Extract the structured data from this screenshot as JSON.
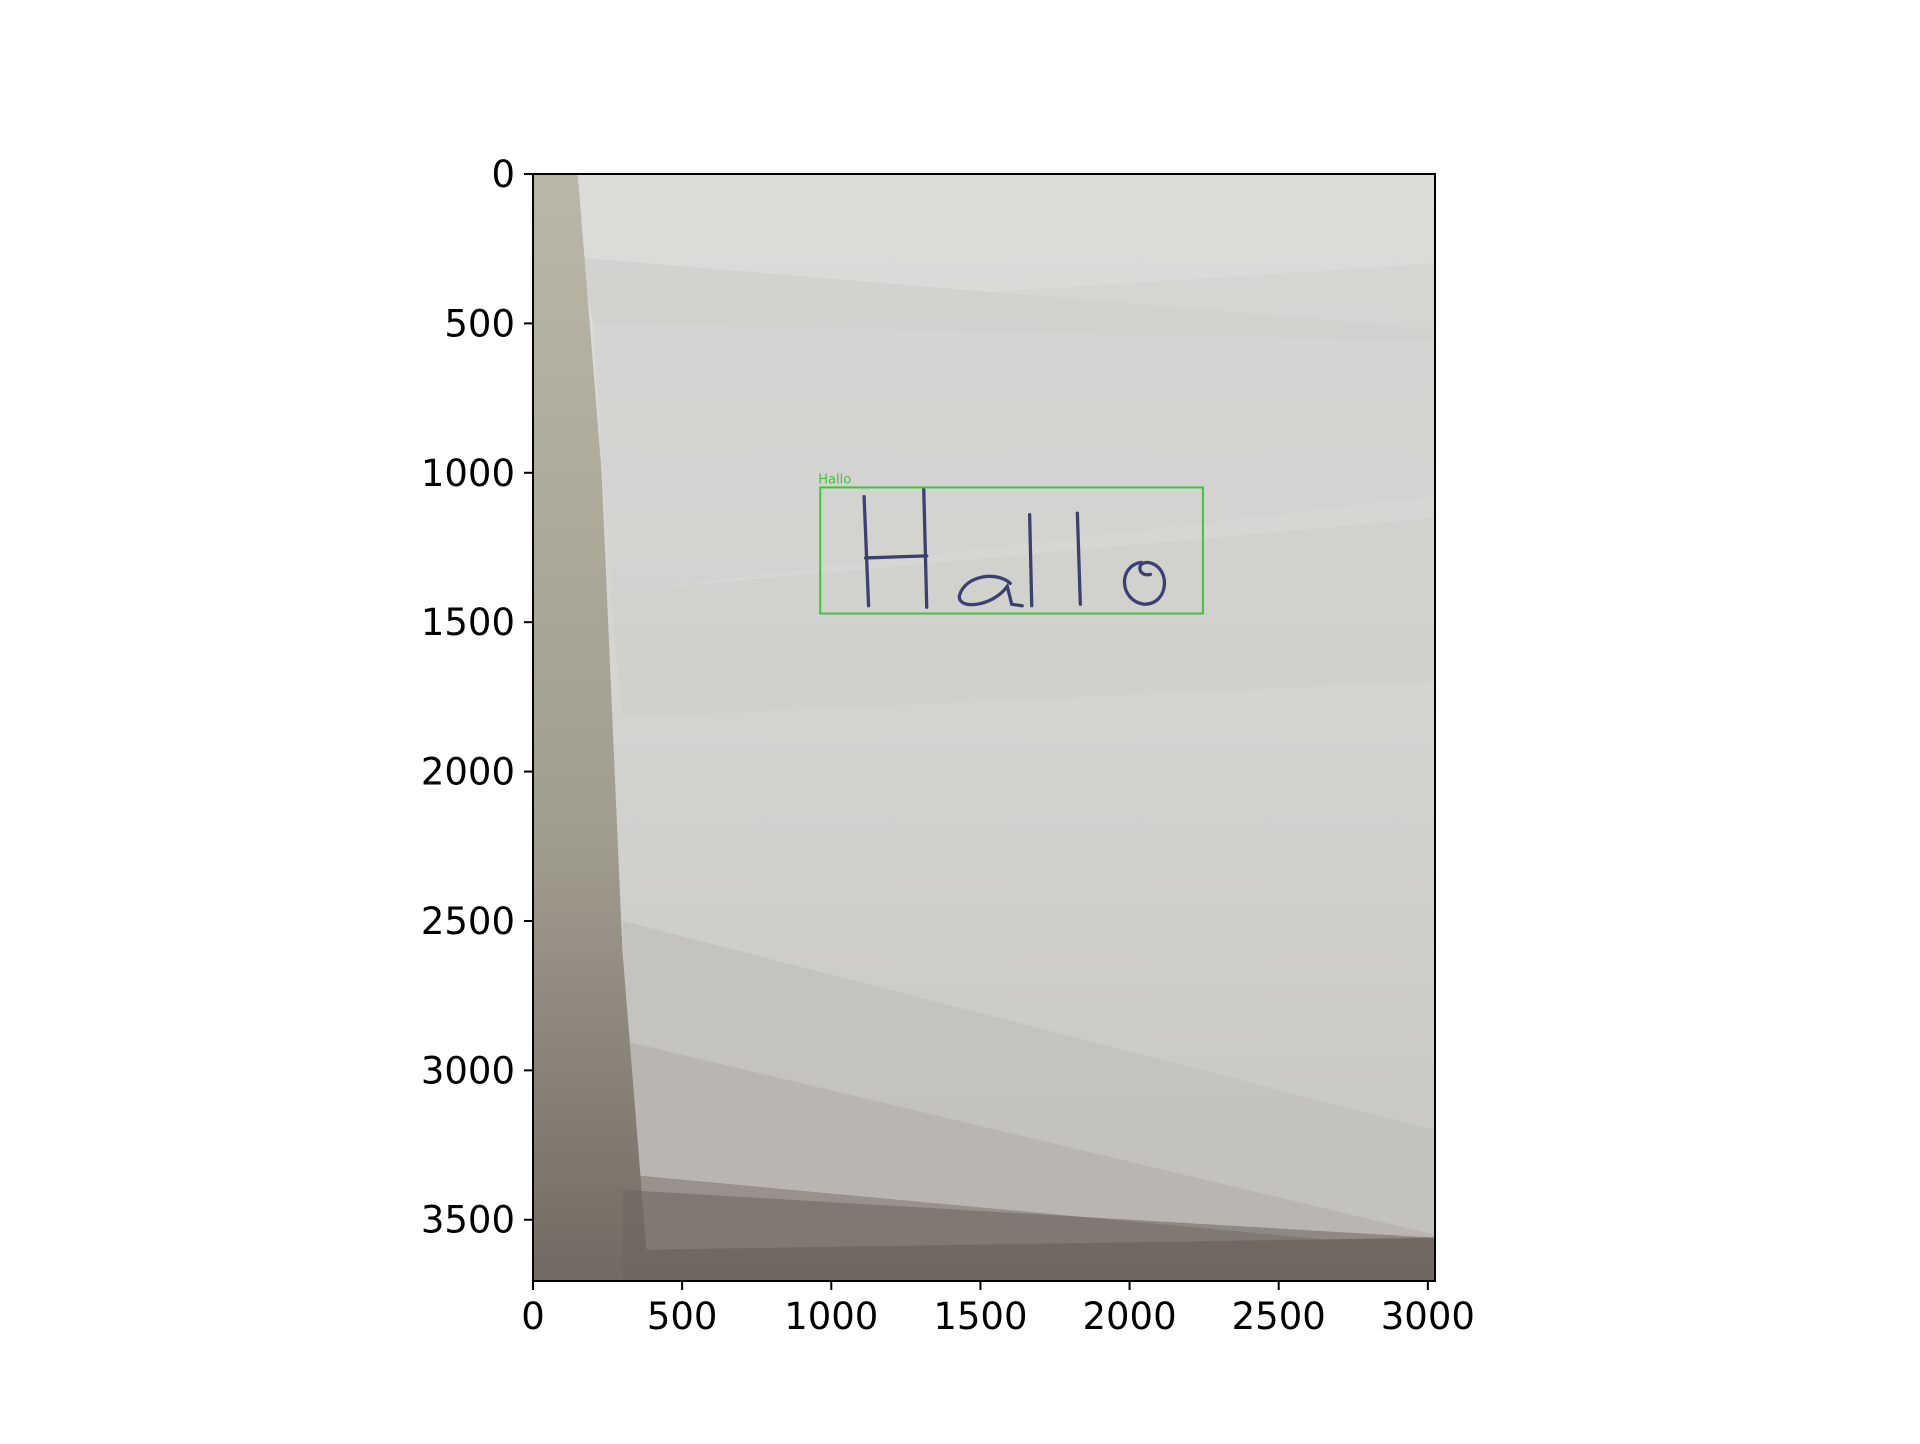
{
  "chart_data": {
    "type": "image",
    "xlim": [
      0,
      3024
    ],
    "ylim": [
      3705,
      0
    ],
    "xticks": [
      0,
      500,
      1000,
      1500,
      2000,
      2500,
      3000
    ],
    "yticks": [
      0,
      500,
      1000,
      1500,
      2000,
      2500,
      3000,
      3500
    ],
    "boxes": [
      {
        "label": "Hallo",
        "x0": 963,
        "y0": 1049,
        "x1": 2246,
        "y1": 1471,
        "color": "#3ec43e"
      }
    ]
  }
}
